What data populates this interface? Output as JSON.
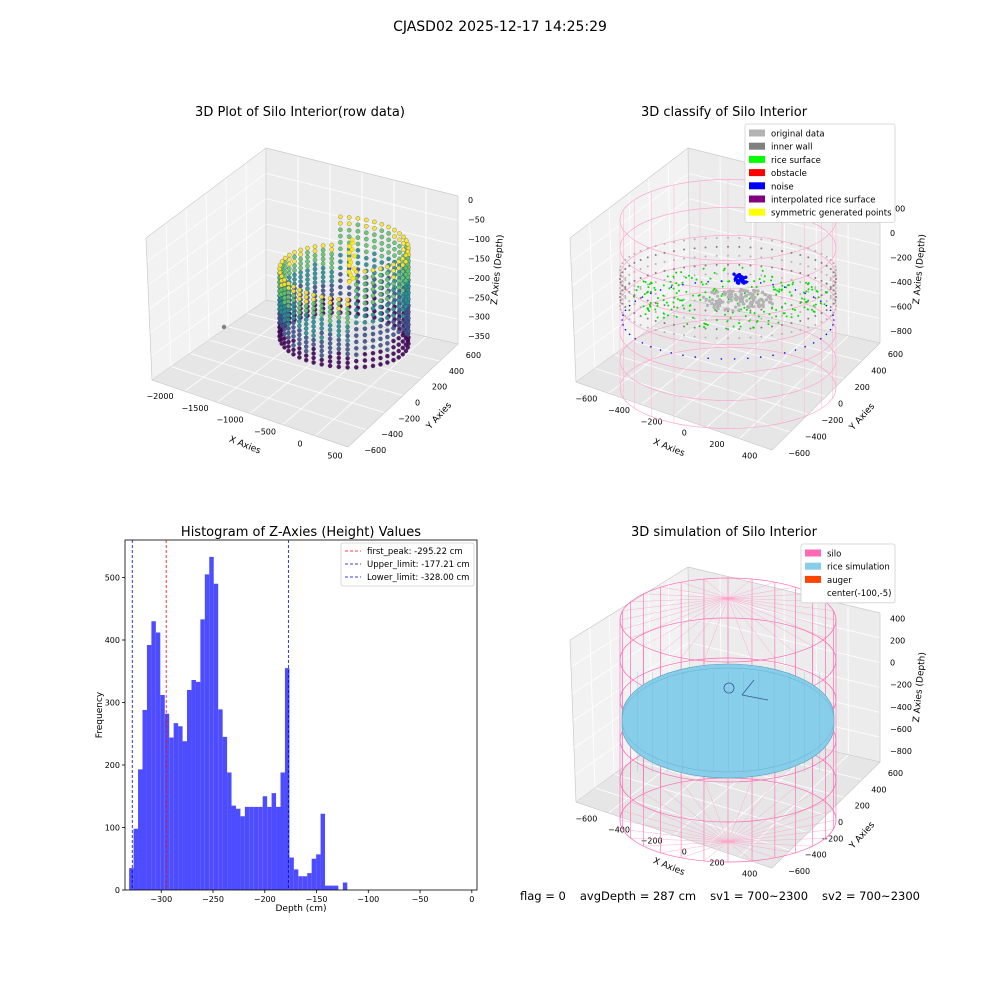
{
  "figure_title": "CJASD02 2025-12-17 14:25:29",
  "footer": {
    "flag": "flag = 0",
    "avg_depth": "avgDepth = 287 cm",
    "sv1": "sv1 = 700~2300",
    "sv2": "sv2 = 700~2300"
  },
  "chart_data": [
    {
      "type": "scatter",
      "title": "3D Plot of Silo Interior(row data)",
      "xlabel": "X Axies",
      "ylabel": "Y Axies",
      "zlabel": "Z Axies (Depth)",
      "xticks": [
        -2000,
        -1500,
        -1000,
        -500,
        0,
        500
      ],
      "yticks": [
        -600,
        -400,
        -200,
        0,
        200,
        400,
        600
      ],
      "zticks": [
        0,
        -50,
        -100,
        -150,
        -200,
        -250,
        -300,
        -350
      ],
      "xlim": [
        -2200,
        600
      ],
      "ylim": [
        -650,
        650
      ],
      "zlim": [
        -370,
        10
      ],
      "colormap": [
        "#440154",
        "#3b528b",
        "#21918c",
        "#5ec962",
        "#fde725"
      ]
    },
    {
      "type": "scatter",
      "title": "3D classify of Silo Interior",
      "xlabel": "X Axies",
      "ylabel": "Y Axies",
      "zlabel": "Z Axies (Depth)",
      "xticks": [
        -600,
        -400,
        -200,
        0,
        200,
        400
      ],
      "yticks": [
        -600,
        -400,
        -200,
        0,
        200,
        400,
        600
      ],
      "zticks": [
        200,
        0,
        -200,
        -400,
        -600,
        -800
      ],
      "xlim": [
        -700,
        500
      ],
      "ylim": [
        -650,
        650
      ],
      "zlim": [
        -900,
        300
      ],
      "legend": [
        {
          "label": "original data",
          "color": "#b3b3b3"
        },
        {
          "label": "inner wall",
          "color": "#808080"
        },
        {
          "label": "rice surface",
          "color": "#00ff00"
        },
        {
          "label": "obstacle",
          "color": "#ff0000"
        },
        {
          "label": "noise",
          "color": "#0000ff"
        },
        {
          "label": "interpolated rice surface",
          "color": "#800080"
        },
        {
          "label": "symmetric generated points",
          "color": "#ffff00"
        }
      ],
      "legend_loc": "upper right"
    },
    {
      "type": "bar",
      "title": "Histogram of Z-Axies (Height) Values",
      "xlabel": "Depth (cm)",
      "ylabel": "Frequency",
      "xlim": [
        -335,
        5
      ],
      "ylim": [
        0,
        560
      ],
      "xticks": [
        -300,
        -250,
        -200,
        -150,
        -100,
        -50,
        0
      ],
      "yticks": [
        0,
        100,
        200,
        300,
        400,
        500
      ],
      "bin_width": 4.3,
      "bin_start": -331,
      "values": [
        35,
        98,
        193,
        288,
        392,
        430,
        412,
        312,
        282,
        244,
        267,
        262,
        238,
        320,
        336,
        333,
        433,
        505,
        533,
        490,
        289,
        245,
        188,
        135,
        130,
        118,
        133,
        133,
        133,
        133,
        150,
        133,
        155,
        133,
        188,
        355,
        52,
        33,
        22,
        22,
        27,
        50,
        57,
        122,
        7,
        7,
        7,
        0,
        12
      ],
      "bar_color": "#4d4dff",
      "lines": [
        {
          "label": "first_peak: -295.22 cm",
          "x": -295.22,
          "color": "#ff0000"
        },
        {
          "label": "Upper_limit: -177.21 cm",
          "x": -177.21,
          "color": "#0000cc"
        },
        {
          "label": "Lower_limit: -328.00 cm",
          "x": -328.0,
          "color": "#0000cc"
        }
      ],
      "legend_loc": "upper right"
    },
    {
      "type": "scatter",
      "title": "3D simulation of Silo Interior",
      "xlabel": "X Axies",
      "ylabel": "Y Axies",
      "zlabel": "Z Axies (Depth)",
      "xticks": [
        -600,
        -400,
        -200,
        0,
        200,
        400
      ],
      "yticks": [
        -600,
        -400,
        -200,
        0,
        200,
        400,
        600
      ],
      "zticks": [
        400,
        200,
        0,
        -200,
        -400,
        -600,
        -800
      ],
      "xlim": [
        -700,
        500
      ],
      "ylim": [
        -650,
        650
      ],
      "zlim": [
        -900,
        450
      ],
      "legend": [
        {
          "label": "silo",
          "color": "#ff69b4"
        },
        {
          "label": "rice simulation",
          "color": "#87ceeb"
        },
        {
          "label": "auger",
          "color": "#ff4500"
        },
        {
          "label": "center(-100,-5)",
          "color": "#ffffff"
        }
      ],
      "legend_loc": "upper right"
    }
  ]
}
